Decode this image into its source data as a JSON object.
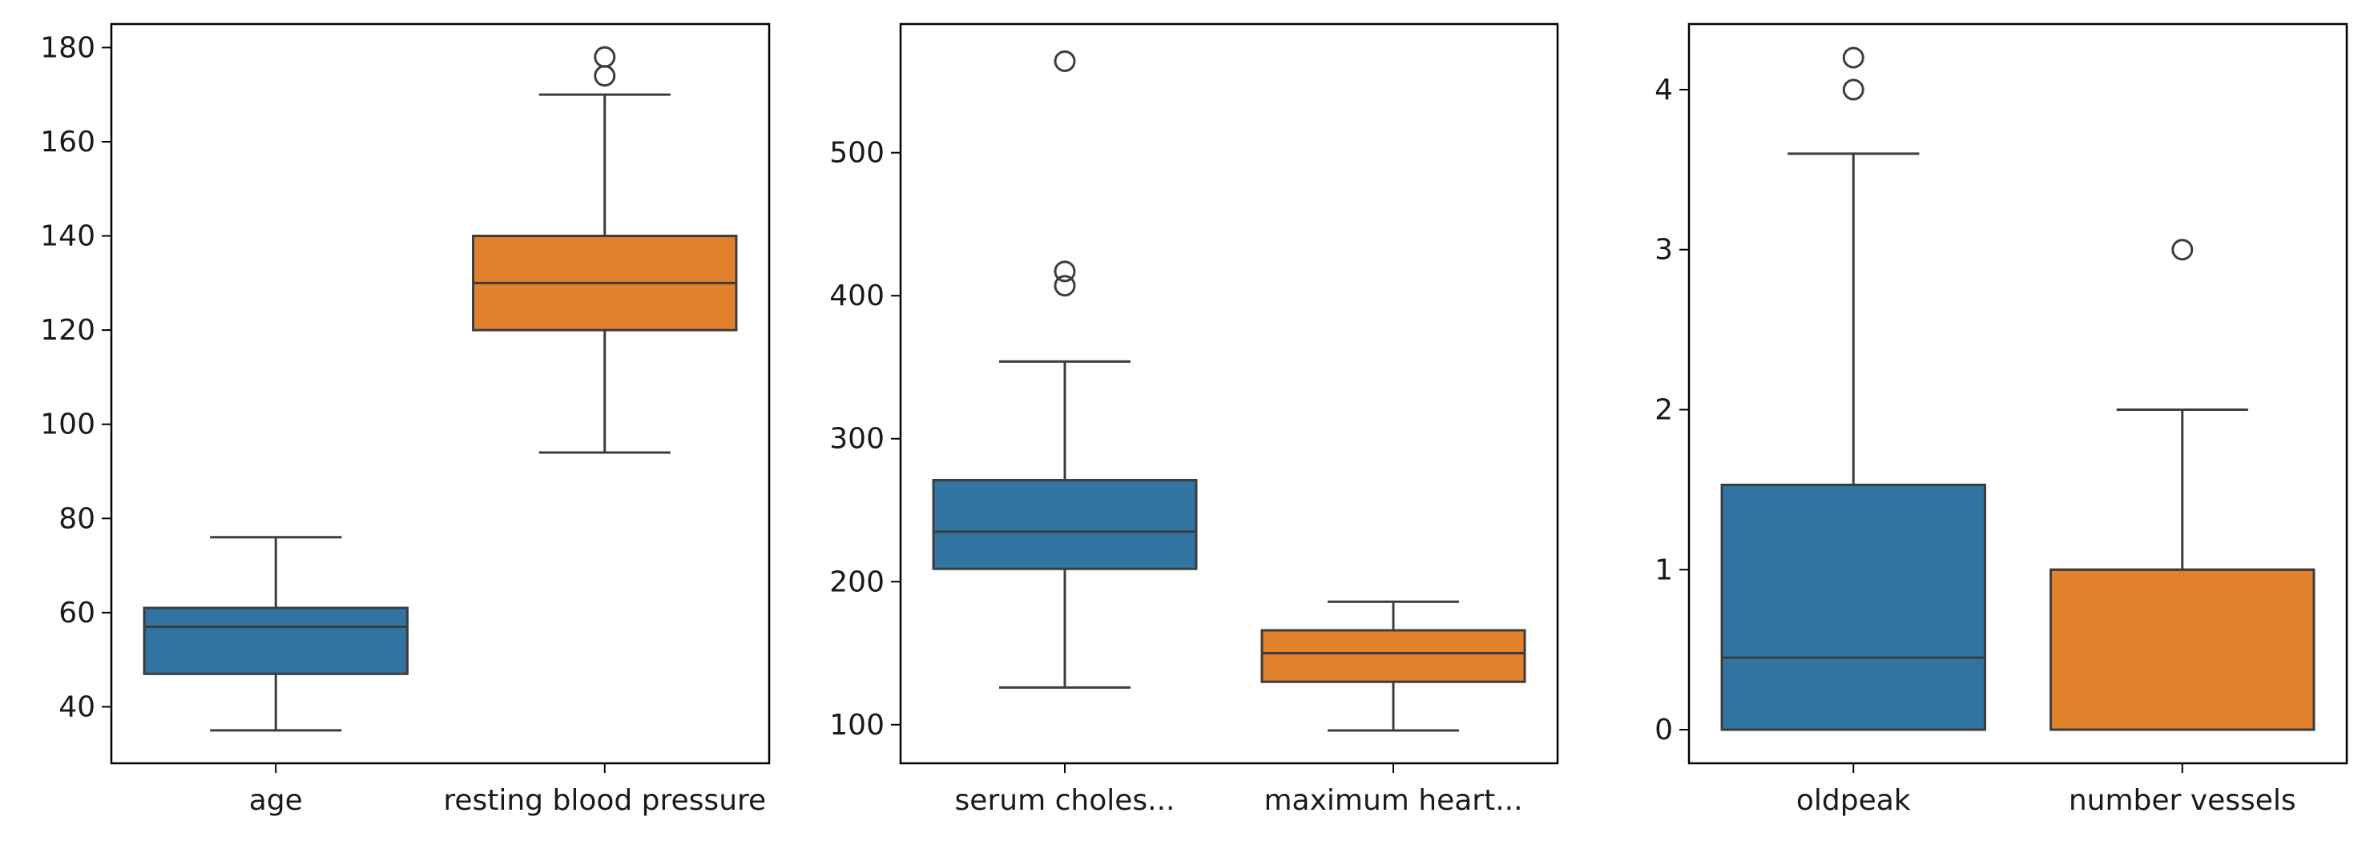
{
  "colors": {
    "box_colors": [
      "#3274a1",
      "#e1812c"
    ],
    "line": "#3d3d3d",
    "axes": "#000000"
  },
  "chart_data": [
    {
      "type": "box",
      "categories": [
        "age",
        "resting blood pressure"
      ],
      "ylim": [
        28,
        185
      ],
      "yticks": [
        40,
        60,
        80,
        100,
        120,
        140,
        160,
        180
      ],
      "boxes": [
        {
          "label": "age",
          "whislo": 35,
          "q1": 47,
          "med": 57,
          "q3": 61,
          "whishi": 76,
          "fliers": []
        },
        {
          "label": "resting blood pressure",
          "whislo": 94,
          "q1": 120,
          "med": 130,
          "q3": 140,
          "whishi": 170,
          "fliers": [
            174,
            178
          ]
        }
      ]
    },
    {
      "type": "box",
      "categories": [
        "serum choles...",
        "maximum heart..."
      ],
      "ylim": [
        73,
        590
      ],
      "yticks": [
        100,
        200,
        300,
        400,
        500
      ],
      "boxes": [
        {
          "label": "serum choles...",
          "whislo": 126,
          "q1": 209,
          "med": 235,
          "q3": 271,
          "whishi": 354,
          "fliers": [
            407,
            417,
            564
          ]
        },
        {
          "label": "maximum heart...",
          "whislo": 96,
          "q1": 130,
          "med": 150,
          "q3": 166,
          "whishi": 186,
          "fliers": []
        }
      ]
    },
    {
      "type": "box",
      "categories": [
        "oldpeak",
        "number vessels"
      ],
      "ylim": [
        -0.21,
        4.41
      ],
      "yticks": [
        0,
        1,
        2,
        3,
        4
      ],
      "boxes": [
        {
          "label": "oldpeak",
          "whislo": 0,
          "q1": 0,
          "med": 0.45,
          "q3": 1.53,
          "whishi": 3.6,
          "fliers": [
            4.0,
            4.2
          ]
        },
        {
          "label": "number vessels",
          "whislo": 0,
          "q1": 0,
          "med": 1,
          "q3": 1,
          "whishi": 2,
          "fliers": [
            3
          ]
        }
      ]
    }
  ]
}
